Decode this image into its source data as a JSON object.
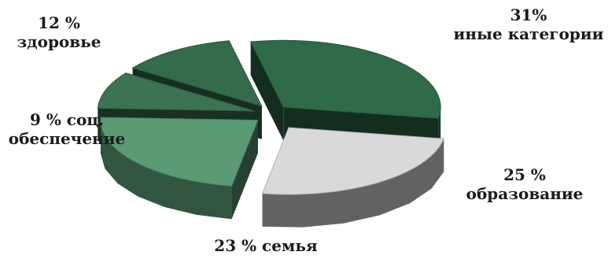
{
  "chart_data": {
    "type": "pie",
    "title": "",
    "legend": "none",
    "slices": [
      {
        "line1": "31%",
        "line2": "иные категории",
        "value": 31,
        "color": "#2f6a49"
      },
      {
        "line1": "25 %",
        "line2": "образование",
        "value": 25,
        "color": "#d9d9d9"
      },
      {
        "line1": "23 % семья",
        "line2": "",
        "value": 23,
        "color": "#5a9a74"
      },
      {
        "line1": "9 % соц.",
        "line2": "обеспечение",
        "value": 9,
        "color": "#3b7353"
      },
      {
        "line1": "12 %",
        "line2": "здоровье",
        "value": 12,
        "color": "#346b4b"
      }
    ]
  }
}
